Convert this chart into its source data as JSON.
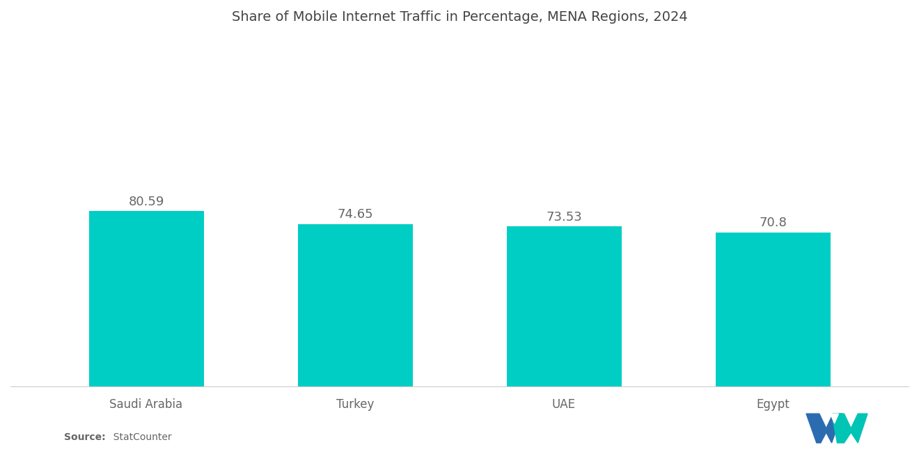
{
  "title": "Share of Mobile Internet Traffic in Percentage, MENA Regions, 2024",
  "categories": [
    "Saudi Arabia",
    "Turkey",
    "UAE",
    "Egypt"
  ],
  "values": [
    80.59,
    74.65,
    73.53,
    70.8
  ],
  "bar_color": "#00CEC4",
  "label_color": "#666666",
  "title_color": "#444444",
  "source_bold": "Source:",
  "source_normal": "  StatCounter",
  "background_color": "#ffffff",
  "ylim": [
    0,
    160
  ],
  "title_fontsize": 14,
  "tick_fontsize": 12,
  "value_fontsize": 13,
  "bar_width": 0.55
}
